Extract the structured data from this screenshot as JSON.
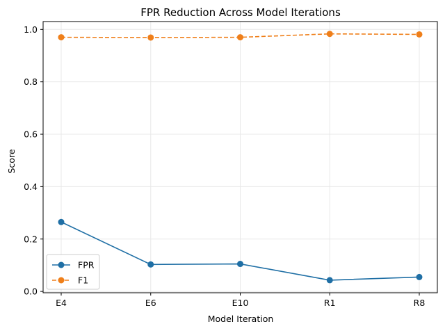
{
  "chart_data": {
    "type": "line",
    "title": "FPR Reduction Across Model Iterations",
    "xlabel": "Model Iteration",
    "ylabel": "Score",
    "categories": [
      "E4",
      "E6",
      "E10",
      "R1",
      "R8"
    ],
    "ylim": [
      -0.005,
      1.03
    ],
    "yticks": [
      0.0,
      0.2,
      0.4,
      0.6,
      0.8,
      1.0
    ],
    "ytick_labels": [
      "0.0",
      "0.2",
      "0.4",
      "0.6",
      "0.8",
      "1.0"
    ],
    "grid": true,
    "legend_position": "lower-left",
    "series": [
      {
        "name": "FPR",
        "values": [
          0.265,
          0.103,
          0.105,
          0.043,
          0.055
        ],
        "color": "#1f6fa5",
        "linestyle": "solid",
        "marker": "circle"
      },
      {
        "name": "F1",
        "values": [
          0.97,
          0.969,
          0.97,
          0.983,
          0.981
        ],
        "color": "#ef7f1a",
        "linestyle": "dashed",
        "marker": "circle"
      }
    ]
  }
}
